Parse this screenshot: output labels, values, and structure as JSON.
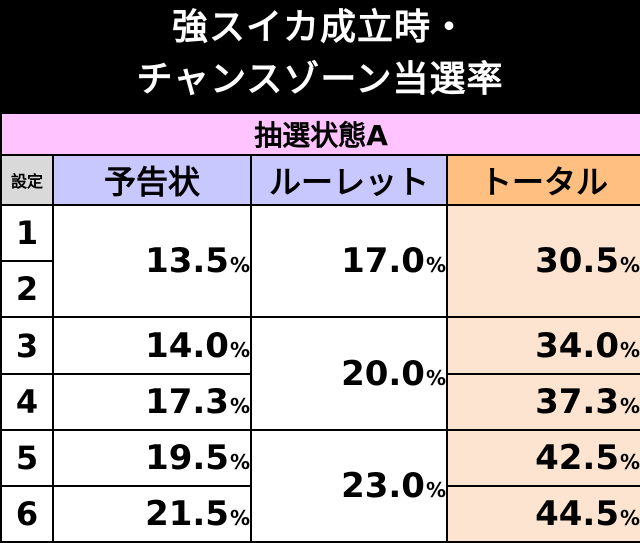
{
  "title": {
    "line1": "強スイカ成立時・",
    "line2": "チャンスゾーン当選率"
  },
  "state_label": "抽選状態A",
  "headers": {
    "setting": "設定",
    "yokoku": "予告状",
    "roulette": "ルーレット",
    "total": "トータル"
  },
  "percent_sign": "%",
  "rows": {
    "s1": "1",
    "s2": "2",
    "s3": "3",
    "s4": "4",
    "s5": "5",
    "s6": "6"
  },
  "values": {
    "yokoku_12": "13.5",
    "yokoku_3": "14.0",
    "yokoku_4": "17.3",
    "yokoku_5": "19.5",
    "yokoku_6": "21.5",
    "roulette_12": "17.0",
    "roulette_34": "20.0",
    "roulette_56": "23.0",
    "total_12": "30.5",
    "total_3": "34.0",
    "total_4": "37.3",
    "total_5": "42.5",
    "total_6": "44.5"
  },
  "colors": {
    "state_bg": "#ffc3ff",
    "header_blue": "#c8c8ff",
    "header_orange": "#ffbf80",
    "total_bg": "#fce4d0",
    "setting_header_bg": "#d9d9d9"
  }
}
